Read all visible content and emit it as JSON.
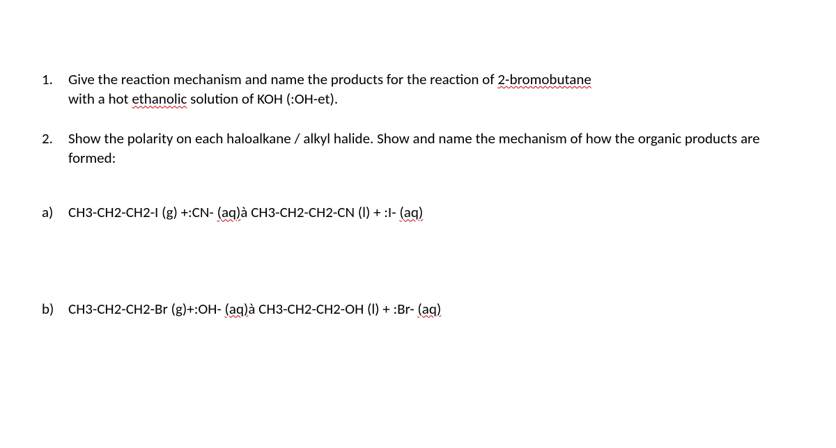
{
  "font_family": "Calibri, 'Segoe UI', Arial, sans-serif",
  "text_color": "#000000",
  "background_color": "#ffffff",
  "squiggle_color": "#c00000",
  "font_size_pt": 16,
  "questions": {
    "q1": {
      "number": "1.",
      "line1_a": "Give the reaction mechanism and name the products for the reaction of ",
      "line1_sq": "2-bromobutane",
      "line2_a": "with a hot ",
      "line2_sq": "ethanolic",
      "line2_b": " solution of KOH (:OH-et)."
    },
    "q2": {
      "number": "2.",
      "text": "Show the polarity on each haloalkane / alkyl halide. Show and name the mechanism of how the organic products are formed:"
    },
    "a": {
      "label": "a)",
      "p1": "CH3-CH2-CH2-I (g) +:CN- ",
      "sq1": "(aq)",
      "p2": "à   CH3-CH2-CH2-CN (l) + :I- ",
      "sq2": "(aq)"
    },
    "b": {
      "label": "b)",
      "p1": "CH3-CH2-CH2-Br (g)+:OH- ",
      "sq1": "(aq)",
      "p2": "à CH3-CH2-CH2-OH (l) +  :Br- ",
      "sq2": "(aq)"
    }
  }
}
